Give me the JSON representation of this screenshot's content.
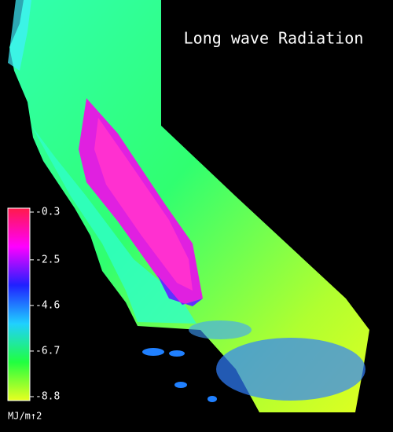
{
  "title": "Long wave Radiation",
  "colorbar": {
    "ticks": [
      -0.3,
      -2.5,
      -4.6,
      -6.7,
      -8.8
    ],
    "label": "MJ/m↑2",
    "colors": [
      "#ff1a4a",
      "#ff00ff",
      "#2020ff",
      "#20d0ff",
      "#20ff40",
      "#e8ff20"
    ]
  }
}
